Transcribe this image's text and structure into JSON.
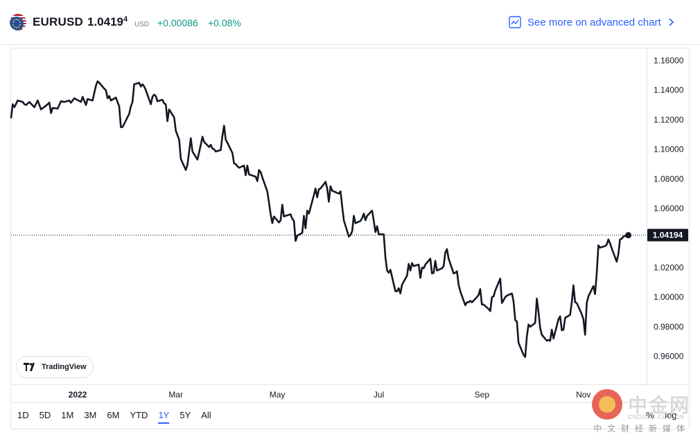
{
  "header": {
    "symbol": "EURUSD",
    "price_main": "1.0419",
    "price_sup": "4",
    "currency": "USD",
    "change_abs": "+0.00086",
    "change_pct": "+0.08%",
    "advanced_link": "See more on advanced chart",
    "flag_icon": "eu-us-flag-icon",
    "up_color": "#089981",
    "link_color": "#2962ff"
  },
  "tradingview_label": "TradingView",
  "ranges": [
    "1D",
    "5D",
    "1M",
    "3M",
    "6M",
    "YTD",
    "1Y",
    "5Y",
    "All"
  ],
  "active_range": "1Y",
  "scale_options": {
    "percent": "%",
    "log": "log"
  },
  "watermark": {
    "name": "中金网",
    "domain": "CNGOLD.COM.CN",
    "tagline": "中文财经新媒体"
  },
  "chart_data": {
    "type": "line",
    "title": "",
    "xlabel": "",
    "ylabel": "",
    "ylim": [
      0.95,
      1.165
    ],
    "y_ticks": [
      "1.16000",
      "1.14000",
      "1.12000",
      "1.10000",
      "1.08000",
      "1.06000",
      "1.04000",
      "1.02000",
      "1.00000",
      "0.98000",
      "0.96000"
    ],
    "y_tick_values": [
      1.16,
      1.14,
      1.12,
      1.1,
      1.08,
      1.06,
      1.04,
      1.02,
      1.0,
      0.98,
      0.96
    ],
    "x_ticks": [
      {
        "label": "2022",
        "date": "2022-01-01",
        "bold": true
      },
      {
        "label": "Mar",
        "date": "2022-03-01"
      },
      {
        "label": "May",
        "date": "2022-05-01"
      },
      {
        "label": "Jul",
        "date": "2022-07-01"
      },
      {
        "label": "Sep",
        "date": "2022-09-01"
      },
      {
        "label": "Nov",
        "date": "2022-11-01"
      }
    ],
    "xlim": [
      "2021-11-22",
      "2022-12-09"
    ],
    "last_value": 1.04194,
    "last_value_label": "1.04194",
    "line_color": "#131722",
    "grid": false,
    "series": [
      {
        "values": [
          [
            "2021-11-22",
            1.1215
          ],
          [
            "2021-11-23",
            1.1305
          ],
          [
            "2021-11-24",
            1.1285
          ],
          [
            "2021-11-26",
            1.133
          ],
          [
            "2021-11-29",
            1.132
          ],
          [
            "2021-11-30",
            1.1305
          ],
          [
            "2021-12-01",
            1.13
          ],
          [
            "2021-12-03",
            1.132
          ],
          [
            "2021-12-06",
            1.1285
          ],
          [
            "2021-12-08",
            1.133
          ],
          [
            "2021-12-10",
            1.127
          ],
          [
            "2021-12-13",
            1.1295
          ],
          [
            "2021-12-15",
            1.1315
          ],
          [
            "2021-12-16",
            1.1245
          ],
          [
            "2021-12-17",
            1.128
          ],
          [
            "2021-12-20",
            1.1275
          ],
          [
            "2021-12-22",
            1.1325
          ],
          [
            "2021-12-24",
            1.132
          ],
          [
            "2021-12-27",
            1.133
          ],
          [
            "2021-12-28",
            1.1315
          ],
          [
            "2021-12-30",
            1.1345
          ],
          [
            "2022-01-03",
            1.132
          ],
          [
            "2022-01-04",
            1.1355
          ],
          [
            "2022-01-06",
            1.13
          ],
          [
            "2022-01-07",
            1.134
          ],
          [
            "2022-01-10",
            1.133
          ],
          [
            "2022-01-12",
            1.143
          ],
          [
            "2022-01-13",
            1.146
          ],
          [
            "2022-01-14",
            1.145
          ],
          [
            "2022-01-17",
            1.141
          ],
          [
            "2022-01-18",
            1.14
          ],
          [
            "2022-01-19",
            1.1345
          ],
          [
            "2022-01-20",
            1.136
          ],
          [
            "2022-01-21",
            1.133
          ],
          [
            "2022-01-24",
            1.135
          ],
          [
            "2022-01-26",
            1.129
          ],
          [
            "2022-01-27",
            1.115
          ],
          [
            "2022-01-28",
            1.115
          ],
          [
            "2022-02-01",
            1.124
          ],
          [
            "2022-02-02",
            1.129
          ],
          [
            "2022-02-03",
            1.132
          ],
          [
            "2022-02-04",
            1.144
          ],
          [
            "2022-02-07",
            1.145
          ],
          [
            "2022-02-08",
            1.1425
          ],
          [
            "2022-02-09",
            1.144
          ],
          [
            "2022-02-10",
            1.1425
          ],
          [
            "2022-02-11",
            1.14
          ],
          [
            "2022-02-14",
            1.1305
          ],
          [
            "2022-02-15",
            1.1355
          ],
          [
            "2022-02-16",
            1.137
          ],
          [
            "2022-02-17",
            1.136
          ],
          [
            "2022-02-18",
            1.1325
          ],
          [
            "2022-02-21",
            1.1335
          ],
          [
            "2022-02-22",
            1.131
          ],
          [
            "2022-02-23",
            1.1305
          ],
          [
            "2022-02-24",
            1.119
          ],
          [
            "2022-02-25",
            1.127
          ],
          [
            "2022-02-28",
            1.1215
          ],
          [
            "2022-03-01",
            1.1125
          ],
          [
            "2022-03-03",
            1.1065
          ],
          [
            "2022-03-04",
            1.0935
          ],
          [
            "2022-03-07",
            1.086
          ],
          [
            "2022-03-08",
            1.0895
          ],
          [
            "2022-03-10",
            1.1075
          ],
          [
            "2022-03-11",
            1.0985
          ],
          [
            "2022-03-14",
            1.093
          ],
          [
            "2022-03-15",
            1.098
          ],
          [
            "2022-03-16",
            1.103
          ],
          [
            "2022-03-17",
            1.1085
          ],
          [
            "2022-03-18",
            1.105
          ],
          [
            "2022-03-21",
            1.1015
          ],
          [
            "2022-03-22",
            1.103
          ],
          [
            "2022-03-23",
            1.1005
          ],
          [
            "2022-03-24",
            1.1
          ],
          [
            "2022-03-25",
            1.0985
          ],
          [
            "2022-03-28",
            1.0995
          ],
          [
            "2022-03-29",
            1.109
          ],
          [
            "2022-03-30",
            1.116
          ],
          [
            "2022-03-31",
            1.1065
          ],
          [
            "2022-04-01",
            1.1045
          ],
          [
            "2022-04-04",
            1.0975
          ],
          [
            "2022-04-05",
            1.0905
          ],
          [
            "2022-04-06",
            1.09
          ],
          [
            "2022-04-07",
            1.0885
          ],
          [
            "2022-04-08",
            1.0875
          ],
          [
            "2022-04-11",
            1.089
          ],
          [
            "2022-04-12",
            1.0825
          ],
          [
            "2022-04-13",
            1.089
          ],
          [
            "2022-04-14",
            1.083
          ],
          [
            "2022-04-18",
            1.0815
          ],
          [
            "2022-04-19",
            1.0785
          ],
          [
            "2022-04-20",
            1.086
          ],
          [
            "2022-04-21",
            1.0845
          ],
          [
            "2022-04-22",
            1.081
          ],
          [
            "2022-04-25",
            1.0715
          ],
          [
            "2022-04-26",
            1.064
          ],
          [
            "2022-04-27",
            1.056
          ],
          [
            "2022-04-28",
            1.05
          ],
          [
            "2022-04-29",
            1.0545
          ],
          [
            "2022-05-02",
            1.0505
          ],
          [
            "2022-05-03",
            1.052
          ],
          [
            "2022-05-04",
            1.0625
          ],
          [
            "2022-05-05",
            1.0545
          ],
          [
            "2022-05-06",
            1.055
          ],
          [
            "2022-05-09",
            1.056
          ],
          [
            "2022-05-10",
            1.053
          ],
          [
            "2022-05-11",
            1.0515
          ],
          [
            "2022-05-12",
            1.038
          ],
          [
            "2022-05-13",
            1.0415
          ],
          [
            "2022-05-16",
            1.0435
          ],
          [
            "2022-05-17",
            1.055
          ],
          [
            "2022-05-18",
            1.0465
          ],
          [
            "2022-05-19",
            1.0585
          ],
          [
            "2022-05-20",
            1.0565
          ],
          [
            "2022-05-23",
            1.069
          ],
          [
            "2022-05-24",
            1.0735
          ],
          [
            "2022-05-25",
            1.0675
          ],
          [
            "2022-05-26",
            1.073
          ],
          [
            "2022-05-27",
            1.0735
          ],
          [
            "2022-05-30",
            1.078
          ],
          [
            "2022-05-31",
            1.0735
          ],
          [
            "2022-06-01",
            1.0645
          ],
          [
            "2022-06-02",
            1.075
          ],
          [
            "2022-06-03",
            1.072
          ],
          [
            "2022-06-06",
            1.0705
          ],
          [
            "2022-06-07",
            1.07
          ],
          [
            "2022-06-08",
            1.0715
          ],
          [
            "2022-06-09",
            1.0615
          ],
          [
            "2022-06-10",
            1.052
          ],
          [
            "2022-06-13",
            1.041
          ],
          [
            "2022-06-14",
            1.042
          ],
          [
            "2022-06-15",
            1.0445
          ],
          [
            "2022-06-16",
            1.055
          ],
          [
            "2022-06-17",
            1.05
          ],
          [
            "2022-06-20",
            1.0515
          ],
          [
            "2022-06-21",
            1.0535
          ],
          [
            "2022-06-22",
            1.0565
          ],
          [
            "2022-06-23",
            1.052
          ],
          [
            "2022-06-24",
            1.055
          ],
          [
            "2022-06-27",
            1.0585
          ],
          [
            "2022-06-28",
            1.0515
          ],
          [
            "2022-06-29",
            1.044
          ],
          [
            "2022-06-30",
            1.048
          ],
          [
            "2022-07-01",
            1.0425
          ],
          [
            "2022-07-04",
            1.0425
          ],
          [
            "2022-07-05",
            1.027
          ],
          [
            "2022-07-06",
            1.018
          ],
          [
            "2022-07-07",
            1.0165
          ],
          [
            "2022-07-08",
            1.0185
          ],
          [
            "2022-07-11",
            1.004
          ],
          [
            "2022-07-12",
            1.004
          ],
          [
            "2022-07-13",
            1.006
          ],
          [
            "2022-07-14",
            1.0025
          ],
          [
            "2022-07-15",
            1.0085
          ],
          [
            "2022-07-18",
            1.0145
          ],
          [
            "2022-07-19",
            1.0225
          ],
          [
            "2022-07-20",
            1.018
          ],
          [
            "2022-07-21",
            1.023
          ],
          [
            "2022-07-22",
            1.021
          ],
          [
            "2022-07-25",
            1.022
          ],
          [
            "2022-07-26",
            1.013
          ],
          [
            "2022-07-27",
            1.02
          ],
          [
            "2022-07-28",
            1.0195
          ],
          [
            "2022-07-29",
            1.022
          ],
          [
            "2022-08-01",
            1.026
          ],
          [
            "2022-08-02",
            1.016
          ],
          [
            "2022-08-03",
            1.0165
          ],
          [
            "2022-08-04",
            1.0245
          ],
          [
            "2022-08-05",
            1.018
          ],
          [
            "2022-08-08",
            1.0195
          ],
          [
            "2022-08-09",
            1.021
          ],
          [
            "2022-08-10",
            1.03
          ],
          [
            "2022-08-11",
            1.0325
          ],
          [
            "2022-08-12",
            1.026
          ],
          [
            "2022-08-15",
            1.016
          ],
          [
            "2022-08-16",
            1.0165
          ],
          [
            "2022-08-17",
            1.0175
          ],
          [
            "2022-08-18",
            1.0085
          ],
          [
            "2022-08-19",
            1.004
          ],
          [
            "2022-08-22",
            0.9945
          ],
          [
            "2022-08-23",
            0.9965
          ],
          [
            "2022-08-24",
            0.9965
          ],
          [
            "2022-08-25",
            0.9975
          ],
          [
            "2022-08-26",
            0.9965
          ],
          [
            "2022-08-29",
            1.0
          ],
          [
            "2022-08-30",
            1.0015
          ],
          [
            "2022-08-31",
            1.0055
          ],
          [
            "2022-09-01",
            0.995
          ],
          [
            "2022-09-02",
            0.995
          ],
          [
            "2022-09-05",
            0.992
          ],
          [
            "2022-09-06",
            0.9905
          ],
          [
            "2022-09-07",
            1.0
          ],
          [
            "2022-09-08",
            1.0005
          ],
          [
            "2022-09-09",
            1.0045
          ],
          [
            "2022-09-12",
            1.0125
          ],
          [
            "2022-09-13",
            0.996
          ],
          [
            "2022-09-14",
            0.998
          ],
          [
            "2022-09-15",
            1.0
          ],
          [
            "2022-09-16",
            1.001
          ],
          [
            "2022-09-19",
            1.0025
          ],
          [
            "2022-09-20",
            0.997
          ],
          [
            "2022-09-21",
            0.9845
          ],
          [
            "2022-09-22",
            0.9835
          ],
          [
            "2022-09-23",
            0.969
          ],
          [
            "2022-09-26",
            0.961
          ],
          [
            "2022-09-27",
            0.9595
          ],
          [
            "2022-09-28",
            0.9735
          ],
          [
            "2022-09-29",
            0.9815
          ],
          [
            "2022-09-30",
            0.98
          ],
          [
            "2022-10-03",
            0.9825
          ],
          [
            "2022-10-04",
            0.999
          ],
          [
            "2022-10-05",
            0.99
          ],
          [
            "2022-10-06",
            0.979
          ],
          [
            "2022-10-07",
            0.9745
          ],
          [
            "2022-10-10",
            0.9705
          ],
          [
            "2022-10-11",
            0.971
          ],
          [
            "2022-10-12",
            0.9705
          ],
          [
            "2022-10-13",
            0.978
          ],
          [
            "2022-10-14",
            0.972
          ],
          [
            "2022-10-17",
            0.985
          ],
          [
            "2022-10-18",
            0.987
          ],
          [
            "2022-10-19",
            0.9775
          ],
          [
            "2022-10-20",
            0.978
          ],
          [
            "2022-10-21",
            0.986
          ],
          [
            "2022-10-24",
            0.988
          ],
          [
            "2022-10-25",
            0.9965
          ],
          [
            "2022-10-26",
            1.008
          ],
          [
            "2022-10-27",
            0.9965
          ],
          [
            "2022-10-28",
            0.996
          ],
          [
            "2022-10-31",
            0.9885
          ],
          [
            "2022-11-01",
            0.985
          ],
          [
            "2022-11-02",
            0.9745
          ],
          [
            "2022-11-03",
            0.996
          ],
          [
            "2022-11-04",
            1.0005
          ],
          [
            "2022-11-07",
            1.0075
          ],
          [
            "2022-11-08",
            1.002
          ],
          [
            "2022-11-09",
            1.016
          ],
          [
            "2022-11-10",
            1.035
          ],
          [
            "2022-11-11",
            1.0335
          ],
          [
            "2022-11-14",
            1.0345
          ],
          [
            "2022-11-15",
            1.0355
          ],
          [
            "2022-11-16",
            1.039
          ],
          [
            "2022-11-17",
            1.0365
          ],
          [
            "2022-11-18",
            1.033
          ],
          [
            "2022-11-21",
            1.024
          ],
          [
            "2022-11-22",
            1.029
          ],
          [
            "2022-11-23",
            1.039
          ],
          [
            "2022-11-24",
            1.0395
          ],
          [
            "2022-11-25",
            1.041
          ],
          [
            "2022-11-28",
            1.0419
          ]
        ]
      }
    ]
  }
}
